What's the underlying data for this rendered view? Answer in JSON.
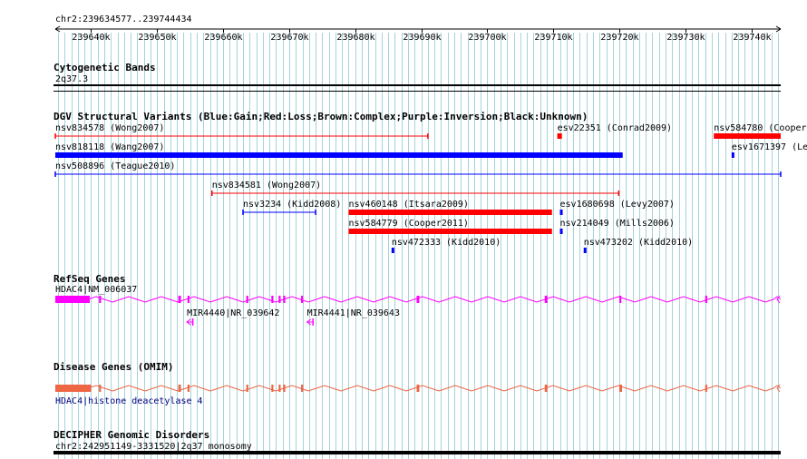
{
  "region": {
    "label": "chr2:239634577..239744434",
    "start": 239634577,
    "end": 239744434,
    "ticks": [
      239640000,
      239650000,
      239660000,
      239670000,
      239680000,
      239690000,
      239700000,
      239710000,
      239720000,
      239730000,
      239740000
    ],
    "tick_labels": [
      "239640k",
      "239650k",
      "239660k",
      "239670k",
      "239680k",
      "239690k",
      "239700k",
      "239710k",
      "239720k",
      "239730k",
      "239740k"
    ]
  },
  "tracks": {
    "cyto": {
      "title": "Cytogenetic Bands",
      "band": "2q37.3"
    },
    "dgv": {
      "title": "DGV Structural Variants (Blue:Gain;Red:Loss;Brown:Complex;Purple:Inversion;Black:Unknown)",
      "colors": {
        "gain": "#0000ff",
        "loss": "#ff0000"
      },
      "features": [
        {
          "label": "nsv834578 (Wong2007)",
          "start": 239634577,
          "end": 239691000,
          "type": "loss",
          "style": "line"
        },
        {
          "label": "esv22351 (Conrad2009)",
          "start": 239710600,
          "end": 239711300,
          "type": "loss",
          "style": "bar"
        },
        {
          "label": "nsv584780 (Cooper2011)",
          "start": 239734300,
          "end": 239744434,
          "type": "loss",
          "style": "bar"
        },
        {
          "label": "nsv818118 (Wang2007)",
          "start": 239634577,
          "end": 239720500,
          "type": "gain",
          "style": "bar"
        },
        {
          "label": "esv1671397 (Levy2007)",
          "start": 239737000,
          "end": 239737300,
          "type": "gain",
          "style": "bar"
        },
        {
          "label": "nsv508896 (Teague2010)",
          "start": 239634577,
          "end": 239744434,
          "type": "gain",
          "style": "line"
        },
        {
          "label": "nsv834581 (Wong2007)",
          "start": 239658300,
          "end": 239719900,
          "type": "loss",
          "style": "line"
        },
        {
          "label": "nsv3234 (Kidd2008)",
          "start": 239663000,
          "end": 239674000,
          "type": "gain",
          "style": "line"
        },
        {
          "label": "nsv460148 (Itsara2009)",
          "start": 239679000,
          "end": 239709800,
          "type": "loss",
          "style": "bar"
        },
        {
          "label": "esv1680698 (Levy2007)",
          "start": 239711000,
          "end": 239711300,
          "type": "gain",
          "style": "bar"
        },
        {
          "label": "nsv584779 (Cooper2011)",
          "start": 239679000,
          "end": 239709800,
          "type": "loss",
          "style": "bar"
        },
        {
          "label": "nsv214049 (Mills2006)",
          "start": 239711000,
          "end": 239711300,
          "type": "gain",
          "style": "bar"
        },
        {
          "label": "nsv472333 (Kidd2010)",
          "start": 239685500,
          "end": 239685800,
          "type": "gain",
          "style": "bar"
        },
        {
          "label": "nsv473202 (Kidd2010)",
          "start": 239714600,
          "end": 239714900,
          "type": "gain",
          "style": "bar"
        }
      ]
    },
    "refseq": {
      "title": "RefSeq Genes",
      "color": "#ff00ff",
      "genes": [
        {
          "label": "HDAC4|NM_006037",
          "start": 239634577,
          "end": 239744434,
          "strand": "-"
        },
        {
          "label": "MIR4440|NR_039642",
          "start": 239654500,
          "end": 239655400,
          "strand": "-"
        },
        {
          "label": "MIR4441|NR_039643",
          "start": 239672700,
          "end": 239673600,
          "strand": "-"
        }
      ],
      "hdac4_exons": [
        {
          "start": 239634577,
          "end": 239639800
        },
        {
          "start": 239641200,
          "end": 239641500
        },
        {
          "start": 239653200,
          "end": 239653600
        },
        {
          "start": 239654600,
          "end": 239654900
        },
        {
          "start": 239663500,
          "end": 239663800
        },
        {
          "start": 239667300,
          "end": 239667600
        },
        {
          "start": 239668400,
          "end": 239668700
        },
        {
          "start": 239669100,
          "end": 239669400
        },
        {
          "start": 239671800,
          "end": 239672100
        },
        {
          "start": 239689300,
          "end": 239689700
        },
        {
          "start": 239708700,
          "end": 239709100
        },
        {
          "start": 239720000,
          "end": 239720300
        },
        {
          "start": 239733000,
          "end": 239733300
        }
      ]
    },
    "omim": {
      "title": "Disease Genes (OMIM)",
      "color": "#ee6644",
      "gene_label": "HDAC4|histone deacetylase 4",
      "start": 239634577,
      "end": 239744434,
      "exons": [
        {
          "start": 239634577,
          "end": 239640000
        },
        {
          "start": 239641200,
          "end": 239641500
        },
        {
          "start": 239653200,
          "end": 239653600
        },
        {
          "start": 239654600,
          "end": 239654900
        },
        {
          "start": 239663500,
          "end": 239663800
        },
        {
          "start": 239667300,
          "end": 239667600
        },
        {
          "start": 239668400,
          "end": 239668700
        },
        {
          "start": 239669100,
          "end": 239669400
        },
        {
          "start": 239671800,
          "end": 239672100
        },
        {
          "start": 239689300,
          "end": 239689700
        },
        {
          "start": 239708700,
          "end": 239709100
        },
        {
          "start": 239720000,
          "end": 239720400
        },
        {
          "start": 239733000,
          "end": 239733300
        }
      ]
    },
    "decipher": {
      "title": "DECIPHER Genomic Disorders",
      "label": "chr2:242951149-3331520|2q37 monosomy"
    }
  }
}
